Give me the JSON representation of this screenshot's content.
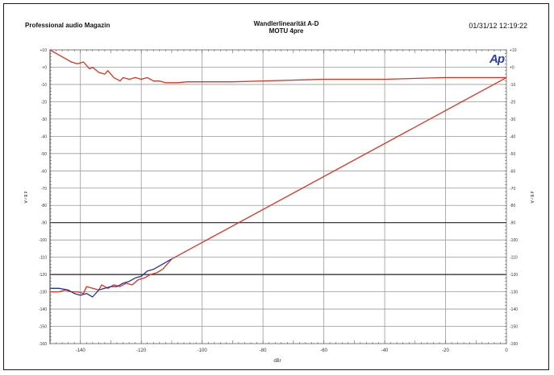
{
  "header": {
    "left": "Professional audio Magazin",
    "center_line1": "Wandlerlinearität A-D",
    "center_line2": "MOTU 4pre",
    "right": "01/31/12 12:19:22"
  },
  "logo": "Ap",
  "colors": {
    "red": "#e0301e",
    "blue": "#2233aa",
    "grid": "#999999",
    "grid_major": "#222222"
  },
  "chart_data": {
    "type": "line",
    "title": "",
    "xlabel": "dBr",
    "ylabel": "d B r A",
    "ylabel_right": "d B r A",
    "xlim": [
      -150,
      0
    ],
    "ylim": [
      -160,
      10
    ],
    "x_ticks": [
      -140,
      -120,
      -100,
      -80,
      -60,
      -40,
      -20,
      0
    ],
    "x_tick_labels": [
      "-140",
      "-120",
      "-100",
      "-80",
      "-60",
      "-40",
      "-20",
      "0"
    ],
    "y_ticks": [
      10,
      0,
      -10,
      -20,
      -30,
      -40,
      -50,
      -60,
      -70,
      -80,
      -90,
      -100,
      -110,
      -120,
      -130,
      -140,
      -150,
      -160
    ],
    "y_tick_labels": [
      "+10",
      "+0",
      "-10",
      "-20",
      "-30",
      "-40",
      "-50",
      "-60",
      "-70",
      "-80",
      "-90",
      "-100",
      "-110",
      "-120",
      "-130",
      "-140",
      "-150",
      "-160"
    ],
    "major_gridlines_y": [
      -90,
      -120
    ],
    "grid": true,
    "series": [
      {
        "color": "#e0301e",
        "points": [
          [
            -150,
            10
          ],
          [
            -148,
            8
          ],
          [
            -146,
            6
          ],
          [
            -145,
            5
          ],
          [
            -143,
            3
          ],
          [
            -141,
            2
          ],
          [
            -139,
            3
          ],
          [
            -138,
            1
          ],
          [
            -137,
            -1
          ],
          [
            -136,
            0
          ],
          [
            -134,
            -3
          ],
          [
            -132,
            -4
          ],
          [
            -131,
            -2
          ],
          [
            -129,
            -6
          ],
          [
            -127,
            -8
          ],
          [
            -126,
            -6
          ],
          [
            -124,
            -7
          ],
          [
            -122,
            -6
          ],
          [
            -120,
            -7
          ],
          [
            -118,
            -6
          ],
          [
            -116,
            -8
          ],
          [
            -114,
            -8
          ],
          [
            -112,
            -9
          ],
          [
            -108,
            -9
          ],
          [
            -105,
            -8.5
          ],
          [
            -100,
            -8.5
          ],
          [
            -90,
            -8.5
          ],
          [
            -80,
            -8
          ],
          [
            -60,
            -7
          ],
          [
            -40,
            -7
          ],
          [
            -20,
            -6
          ],
          [
            0,
            -6
          ]
        ]
      },
      {
        "color": "#e0301e",
        "points": [
          [
            -150,
            -130
          ],
          [
            -147,
            -130
          ],
          [
            -145,
            -129
          ],
          [
            -143,
            -130
          ],
          [
            -141,
            -130
          ],
          [
            -139,
            -131
          ],
          [
            -138,
            -127
          ],
          [
            -136,
            -128
          ],
          [
            -134,
            -129
          ],
          [
            -133,
            -126
          ],
          [
            -131,
            -128
          ],
          [
            -129,
            -126
          ],
          [
            -127,
            -127
          ],
          [
            -125,
            -125
          ],
          [
            -123,
            -126
          ],
          [
            -121,
            -123
          ],
          [
            -119,
            -122
          ],
          [
            -117,
            -120
          ],
          [
            -115,
            -119
          ],
          [
            -113,
            -117
          ],
          [
            -111,
            -113
          ],
          [
            -110,
            -111
          ],
          [
            0,
            -6
          ]
        ]
      },
      {
        "color": "#2233aa",
        "points": [
          [
            -150,
            -128
          ],
          [
            -147,
            -128
          ],
          [
            -144,
            -129
          ],
          [
            -142,
            -131
          ],
          [
            -140,
            -132
          ],
          [
            -138,
            -131
          ],
          [
            -136,
            -133
          ],
          [
            -134,
            -129
          ],
          [
            -132,
            -128
          ],
          [
            -130,
            -127
          ],
          [
            -128,
            -127
          ],
          [
            -126,
            -125
          ],
          [
            -124,
            -124
          ],
          [
            -122,
            -122
          ],
          [
            -120,
            -121
          ],
          [
            -118,
            -118
          ],
          [
            -116,
            -117
          ],
          [
            -114,
            -115
          ],
          [
            -112,
            -113
          ],
          [
            -110,
            -111
          ]
        ]
      }
    ]
  }
}
